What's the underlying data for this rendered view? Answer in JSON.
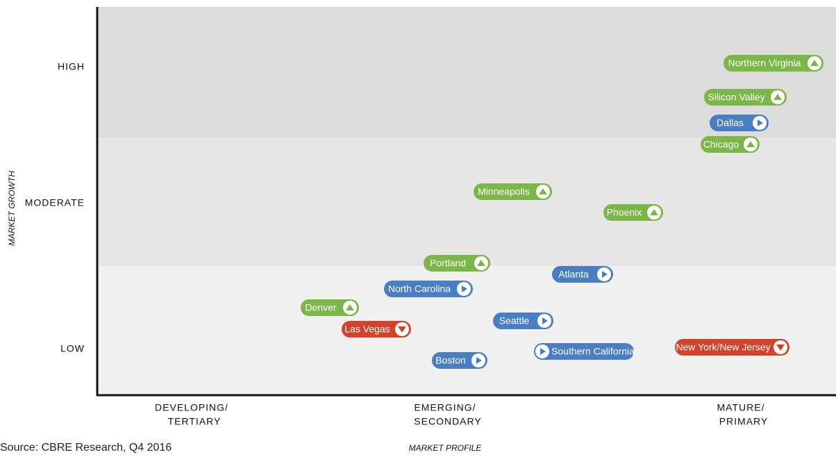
{
  "y_axis": {
    "label": "MARKET GROWTH",
    "levels": [
      "HIGH",
      "MODERATE",
      "LOW"
    ]
  },
  "x_axis": {
    "label": "MARKET PROFILE",
    "levels": [
      [
        "DEVELOPING/",
        "TERTIARY"
      ],
      [
        "EMERGING/",
        "SECONDARY"
      ],
      [
        "MATURE/",
        "PRIMARY"
      ]
    ]
  },
  "source": "Source: CBRE Research, Q4 2016",
  "markets": [
    {
      "name": "Northern Virginia",
      "color": "#7ab648",
      "icon": "up"
    },
    {
      "name": "Silicon Valley",
      "color": "#7ab648",
      "icon": "up"
    },
    {
      "name": "Dallas",
      "color": "#4a7ec4",
      "icon": "right"
    },
    {
      "name": "Chicago",
      "color": "#7ab648",
      "icon": "up"
    },
    {
      "name": "Minneapolis",
      "color": "#7ab648",
      "icon": "up"
    },
    {
      "name": "Phoenix",
      "color": "#7ab648",
      "icon": "up"
    },
    {
      "name": "Portland",
      "color": "#7ab648",
      "icon": "up"
    },
    {
      "name": "Atlanta",
      "color": "#4a7ec4",
      "icon": "right"
    },
    {
      "name": "North Carolina",
      "color": "#4a7ec4",
      "icon": "right"
    },
    {
      "name": "Denver",
      "color": "#7ab648",
      "icon": "up"
    },
    {
      "name": "Seattle",
      "color": "#4a7ec4",
      "icon": "right"
    },
    {
      "name": "Las Vegas",
      "color": "#d2432a",
      "icon": "down"
    },
    {
      "name": "Southern California",
      "color": "#4a7ec4",
      "icon": "right",
      "icon_side": "left"
    },
    {
      "name": "New York/New Jersey",
      "color": "#d2432a",
      "icon": "down"
    },
    {
      "name": "Boston",
      "color": "#4a7ec4",
      "icon": "right"
    }
  ]
}
